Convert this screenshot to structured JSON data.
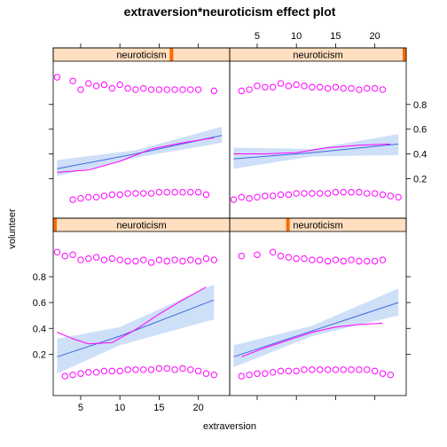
{
  "chart_data": {
    "type": "scatter",
    "title": "extraversion*neuroticism effect plot",
    "xlabel": "extraversion",
    "ylabel": "volunteer",
    "strip_label": "neuroticism",
    "xlim": [
      1.5,
      24
    ],
    "x_ticks": [
      5,
      10,
      15,
      20
    ],
    "y_ticks": [
      0.2,
      0.4,
      0.6,
      0.8
    ],
    "y_tick_labels": [
      "0.2",
      "0.4",
      "0.6",
      "0.8"
    ],
    "grid": false,
    "colors": {
      "points": "#ff00ff",
      "fit_line": "#3d6be0",
      "smooth_line": "#ff00ff",
      "band": "#c9dcf7",
      "strip_bg": "#ffdfbf",
      "strip_marker": "#ff6a00"
    },
    "panels": [
      {
        "position": "bottom-left",
        "neuroticism_level": 0.0,
        "fit": [
          [
            2,
            0.18
          ],
          [
            10,
            0.34
          ],
          [
            22,
            0.62
          ]
        ],
        "band_lower": [
          [
            2,
            0.05
          ],
          [
            10,
            0.27
          ],
          [
            22,
            0.47
          ]
        ],
        "band_upper": [
          [
            2,
            0.32
          ],
          [
            10,
            0.41
          ],
          [
            22,
            0.74
          ]
        ],
        "smooth": [
          [
            2,
            0.37
          ],
          [
            4,
            0.32
          ],
          [
            6,
            0.28
          ],
          [
            9,
            0.29
          ],
          [
            12,
            0.39
          ],
          [
            15,
            0.51
          ],
          [
            18,
            0.62
          ],
          [
            21,
            0.72
          ]
        ],
        "points_top": [
          [
            2,
            0.99
          ],
          [
            3,
            0.96
          ],
          [
            4,
            0.97
          ],
          [
            5,
            0.93
          ],
          [
            6,
            0.94
          ],
          [
            7,
            0.95
          ],
          [
            8,
            0.93
          ],
          [
            9,
            0.94
          ],
          [
            10,
            0.93
          ],
          [
            11,
            0.92
          ],
          [
            12,
            0.92
          ],
          [
            13,
            0.93
          ],
          [
            14,
            0.91
          ],
          [
            15,
            0.93
          ],
          [
            16,
            0.92
          ],
          [
            17,
            0.93
          ],
          [
            18,
            0.92
          ],
          [
            19,
            0.93
          ],
          [
            20,
            0.92
          ],
          [
            21,
            0.94
          ],
          [
            22,
            0.93
          ]
        ],
        "points_bottom": [
          [
            3,
            0.03
          ],
          [
            4,
            0.04
          ],
          [
            5,
            0.05
          ],
          [
            6,
            0.06
          ],
          [
            7,
            0.06
          ],
          [
            8,
            0.07
          ],
          [
            9,
            0.07
          ],
          [
            10,
            0.07
          ],
          [
            11,
            0.08
          ],
          [
            12,
            0.08
          ],
          [
            13,
            0.08
          ],
          [
            14,
            0.08
          ],
          [
            15,
            0.09
          ],
          [
            16,
            0.09
          ],
          [
            17,
            0.08
          ],
          [
            18,
            0.09
          ],
          [
            19,
            0.08
          ],
          [
            20,
            0.07
          ],
          [
            21,
            0.05
          ],
          [
            22,
            0.04
          ]
        ]
      },
      {
        "position": "bottom-right",
        "neuroticism_level": 0.33,
        "fit": [
          [
            2,
            0.18
          ],
          [
            12,
            0.38
          ],
          [
            23,
            0.6
          ]
        ],
        "band_lower": [
          [
            2,
            0.1
          ],
          [
            12,
            0.34
          ],
          [
            23,
            0.5
          ]
        ],
        "band_upper": [
          [
            2,
            0.27
          ],
          [
            12,
            0.42
          ],
          [
            23,
            0.71
          ]
        ],
        "smooth": [
          [
            3,
            0.18
          ],
          [
            6,
            0.25
          ],
          [
            9,
            0.31
          ],
          [
            12,
            0.37
          ],
          [
            15,
            0.41
          ],
          [
            18,
            0.43
          ],
          [
            21,
            0.44
          ]
        ],
        "points_top": [
          [
            3,
            0.96
          ],
          [
            5,
            0.97
          ],
          [
            7,
            0.99
          ],
          [
            8,
            0.96
          ],
          [
            9,
            0.95
          ],
          [
            10,
            0.94
          ],
          [
            11,
            0.94
          ],
          [
            12,
            0.93
          ],
          [
            13,
            0.93
          ],
          [
            14,
            0.92
          ],
          [
            15,
            0.93
          ],
          [
            16,
            0.92
          ],
          [
            17,
            0.93
          ],
          [
            18,
            0.92
          ],
          [
            19,
            0.92
          ],
          [
            20,
            0.92
          ],
          [
            21,
            0.93
          ]
        ],
        "points_bottom": [
          [
            3,
            0.03
          ],
          [
            4,
            0.04
          ],
          [
            5,
            0.05
          ],
          [
            6,
            0.05
          ],
          [
            7,
            0.06
          ],
          [
            8,
            0.07
          ],
          [
            9,
            0.07
          ],
          [
            10,
            0.07
          ],
          [
            11,
            0.08
          ],
          [
            12,
            0.08
          ],
          [
            13,
            0.08
          ],
          [
            14,
            0.08
          ],
          [
            15,
            0.08
          ],
          [
            16,
            0.08
          ],
          [
            17,
            0.08
          ],
          [
            18,
            0.08
          ],
          [
            19,
            0.08
          ],
          [
            20,
            0.07
          ],
          [
            21,
            0.05
          ],
          [
            22,
            0.04
          ]
        ]
      },
      {
        "position": "top-left",
        "neuroticism_level": 0.67,
        "fit": [
          [
            2,
            0.28
          ],
          [
            12,
            0.4
          ],
          [
            23,
            0.55
          ]
        ],
        "band_lower": [
          [
            2,
            0.22
          ],
          [
            12,
            0.37
          ],
          [
            23,
            0.49
          ]
        ],
        "band_upper": [
          [
            2,
            0.35
          ],
          [
            12,
            0.43
          ],
          [
            23,
            0.62
          ]
        ],
        "smooth": [
          [
            2,
            0.25
          ],
          [
            6,
            0.27
          ],
          [
            10,
            0.34
          ],
          [
            14,
            0.44
          ],
          [
            18,
            0.49
          ],
          [
            22,
            0.53
          ]
        ],
        "points_top": [
          [
            2,
            1.02
          ],
          [
            4,
            0.99
          ],
          [
            5,
            0.92
          ],
          [
            6,
            0.97
          ],
          [
            7,
            0.95
          ],
          [
            8,
            0.96
          ],
          [
            9,
            0.93
          ],
          [
            10,
            0.96
          ],
          [
            11,
            0.93
          ],
          [
            12,
            0.92
          ],
          [
            13,
            0.93
          ],
          [
            14,
            0.92
          ],
          [
            15,
            0.92
          ],
          [
            16,
            0.92
          ],
          [
            17,
            0.92
          ],
          [
            18,
            0.92
          ],
          [
            19,
            0.92
          ],
          [
            20,
            0.92
          ],
          [
            22,
            0.91
          ]
        ],
        "points_bottom": [
          [
            4,
            0.03
          ],
          [
            5,
            0.04
          ],
          [
            6,
            0.05
          ],
          [
            7,
            0.05
          ],
          [
            8,
            0.06
          ],
          [
            9,
            0.07
          ],
          [
            10,
            0.07
          ],
          [
            11,
            0.08
          ],
          [
            12,
            0.08
          ],
          [
            13,
            0.08
          ],
          [
            14,
            0.08
          ],
          [
            15,
            0.09
          ],
          [
            16,
            0.09
          ],
          [
            17,
            0.09
          ],
          [
            18,
            0.09
          ],
          [
            19,
            0.09
          ],
          [
            20,
            0.09
          ],
          [
            21,
            0.07
          ]
        ]
      },
      {
        "position": "top-right",
        "neuroticism_level": 1.0,
        "fit": [
          [
            2,
            0.36
          ],
          [
            12,
            0.41
          ],
          [
            23,
            0.48
          ]
        ],
        "band_lower": [
          [
            2,
            0.28
          ],
          [
            12,
            0.38
          ],
          [
            23,
            0.39
          ]
        ],
        "band_upper": [
          [
            2,
            0.45
          ],
          [
            12,
            0.44
          ],
          [
            23,
            0.56
          ]
        ],
        "smooth": [
          [
            2,
            0.4
          ],
          [
            6,
            0.4
          ],
          [
            10,
            0.41
          ],
          [
            14,
            0.45
          ],
          [
            18,
            0.47
          ],
          [
            22,
            0.48
          ]
        ],
        "points_top": [
          [
            3,
            0.91
          ],
          [
            4,
            0.92
          ],
          [
            5,
            0.95
          ],
          [
            6,
            0.94
          ],
          [
            7,
            0.94
          ],
          [
            8,
            0.97
          ],
          [
            9,
            0.95
          ],
          [
            10,
            0.96
          ],
          [
            11,
            0.95
          ],
          [
            12,
            0.94
          ],
          [
            13,
            0.94
          ],
          [
            14,
            0.93
          ],
          [
            15,
            0.94
          ],
          [
            16,
            0.93
          ],
          [
            17,
            0.93
          ],
          [
            18,
            0.92
          ],
          [
            19,
            0.93
          ],
          [
            20,
            0.93
          ],
          [
            21,
            0.92
          ]
        ],
        "points_bottom": [
          [
            2,
            0.03
          ],
          [
            3,
            0.05
          ],
          [
            4,
            0.04
          ],
          [
            5,
            0.05
          ],
          [
            6,
            0.06
          ],
          [
            7,
            0.06
          ],
          [
            8,
            0.07
          ],
          [
            9,
            0.07
          ],
          [
            10,
            0.08
          ],
          [
            11,
            0.08
          ],
          [
            12,
            0.08
          ],
          [
            13,
            0.08
          ],
          [
            14,
            0.08
          ],
          [
            15,
            0.09
          ],
          [
            16,
            0.09
          ],
          [
            17,
            0.09
          ],
          [
            18,
            0.09
          ],
          [
            19,
            0.08
          ],
          [
            20,
            0.08
          ],
          [
            21,
            0.07
          ],
          [
            22,
            0.06
          ],
          [
            23,
            0.05
          ]
        ]
      }
    ]
  }
}
